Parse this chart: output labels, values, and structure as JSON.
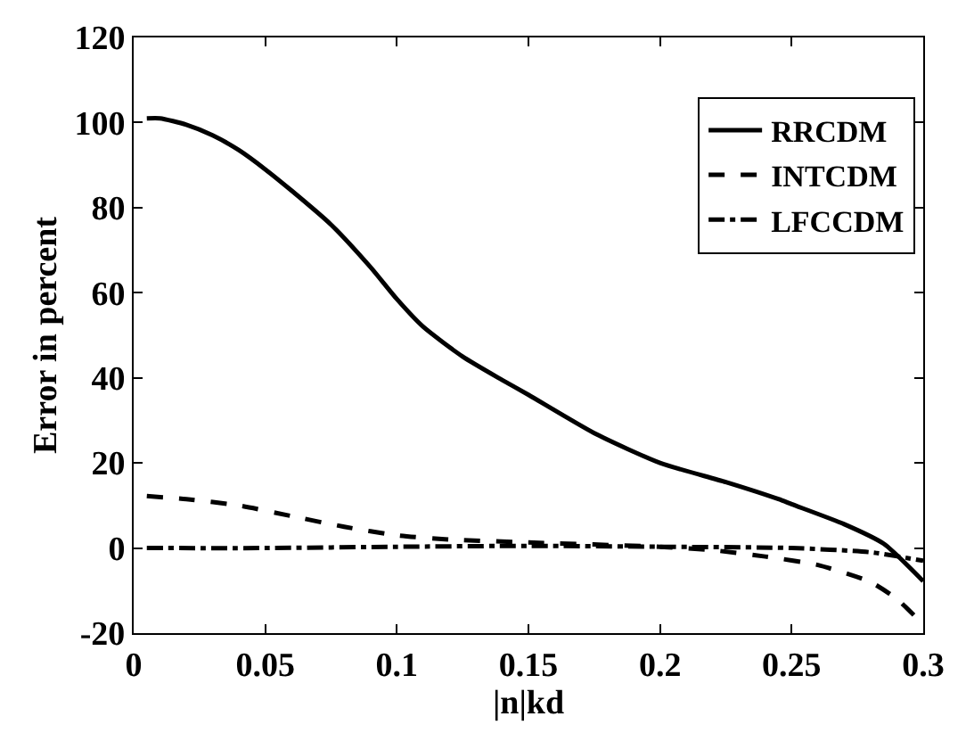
{
  "chart_data": {
    "type": "line",
    "xlabel": "|n|kd",
    "ylabel": "Error in percent",
    "xlim": [
      0,
      0.3
    ],
    "xticks": [
      0,
      0.05,
      0.1,
      0.15,
      0.2,
      0.25,
      0.3
    ],
    "ylim": [
      -20,
      120
    ],
    "yticks": [
      -20,
      0,
      20,
      40,
      60,
      80,
      100,
      120
    ],
    "legend": "top right",
    "series": [
      {
        "name": "RRCDM",
        "color": "#000000",
        "line_style": "solid",
        "x": [
          0.005,
          0.01,
          0.02,
          0.03,
          0.04,
          0.05,
          0.06,
          0.075,
          0.09,
          0.1,
          0.11,
          0.125,
          0.14,
          0.15,
          0.175,
          0.2,
          0.225,
          0.245,
          0.25,
          0.27,
          0.285,
          0.3
        ],
        "values": [
          101,
          101,
          99.5,
          97,
          93.5,
          89,
          84,
          76,
          66,
          58.5,
          52,
          45,
          39.5,
          36,
          27,
          20,
          15.5,
          11.5,
          10.3,
          5.6,
          1,
          -7.8
        ]
      },
      {
        "name": "INTCDM",
        "color": "#000000",
        "line_style": "dashed",
        "x": [
          0.005,
          0.02,
          0.04,
          0.06,
          0.08,
          0.1,
          0.12,
          0.15,
          0.2,
          0.22,
          0.24,
          0.26,
          0.28,
          0.29,
          0.3
        ],
        "values": [
          12.2,
          11.5,
          10,
          7.5,
          5,
          3,
          2,
          1.3,
          0.3,
          -0.5,
          -2,
          -4,
          -8,
          -12,
          -18
        ]
      },
      {
        "name": "LFCCDM",
        "color": "#000000",
        "line_style": "dashdot",
        "x": [
          0.005,
          0.05,
          0.1,
          0.15,
          0.2,
          0.25,
          0.28,
          0.3
        ],
        "values": [
          0,
          0,
          0.3,
          0.5,
          0.3,
          0,
          -1,
          -3
        ]
      }
    ]
  }
}
